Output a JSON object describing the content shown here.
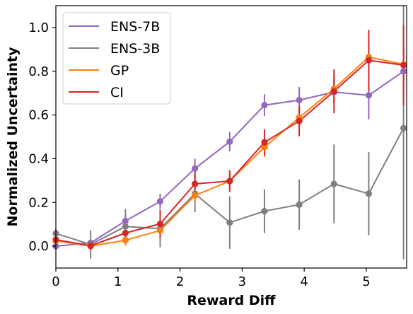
{
  "chart_data": {
    "type": "line",
    "xlabel": "Reward Diff",
    "ylabel": "Normalized Uncertainty",
    "xlim": [
      0,
      5.65
    ],
    "ylim": [
      -0.1,
      1.1
    ],
    "xticks": [
      0,
      1,
      2,
      3,
      4,
      5
    ],
    "yticks": [
      0.0,
      0.2,
      0.4,
      0.6,
      0.8,
      1.0
    ],
    "xtick_labels": [
      "0",
      "1",
      "2",
      "3",
      "4",
      "5"
    ],
    "ytick_labels": [
      "0.0",
      "0.2",
      "0.4",
      "0.6",
      "0.8",
      "1.0"
    ],
    "grid": false,
    "legend_position": "top-left",
    "x": [
      0,
      0.56,
      1.12,
      1.68,
      2.24,
      2.8,
      3.36,
      3.92,
      4.48,
      5.04,
      5.6
    ],
    "series": [
      {
        "name": "ENS-7B",
        "color": "#9467bd",
        "values": [
          0.0,
          0.015,
          0.115,
          0.205,
          0.355,
          0.478,
          0.645,
          0.668,
          0.705,
          0.69,
          0.8
        ],
        "error": [
          0.005,
          0.015,
          0.025,
          0.035,
          0.045,
          0.045,
          0.05,
          0.06,
          0.055,
          0.11,
          0.11
        ]
      },
      {
        "name": "ENS-3B",
        "color": "#7f7f7f",
        "values": [
          0.058,
          0.008,
          0.09,
          0.08,
          0.24,
          0.108,
          0.16,
          0.19,
          0.285,
          0.24,
          0.54
        ],
        "error": [
          0.02,
          0.065,
          0.08,
          0.085,
          0.085,
          0.12,
          0.1,
          0.115,
          0.18,
          0.19,
          0.6
        ]
      },
      {
        "name": "GP",
        "color": "#ff7f0e",
        "values": [
          0.025,
          0.0,
          0.027,
          0.072,
          0.232,
          0.298,
          0.453,
          0.588,
          0.72,
          0.865,
          0.832
        ],
        "error": [
          0.01,
          0.015,
          0.025,
          0.03,
          0.035,
          0.035,
          0.045,
          0.055,
          0.065,
          0.08,
          0.08
        ]
      },
      {
        "name": "CI",
        "color": "#d62728",
        "values": [
          0.03,
          0.002,
          0.06,
          0.102,
          0.285,
          0.298,
          0.475,
          0.572,
          0.708,
          0.85,
          0.828
        ],
        "error": [
          0.012,
          0.02,
          0.03,
          0.065,
          0.055,
          0.05,
          0.06,
          0.07,
          0.1,
          0.14,
          0.185
        ]
      }
    ]
  }
}
